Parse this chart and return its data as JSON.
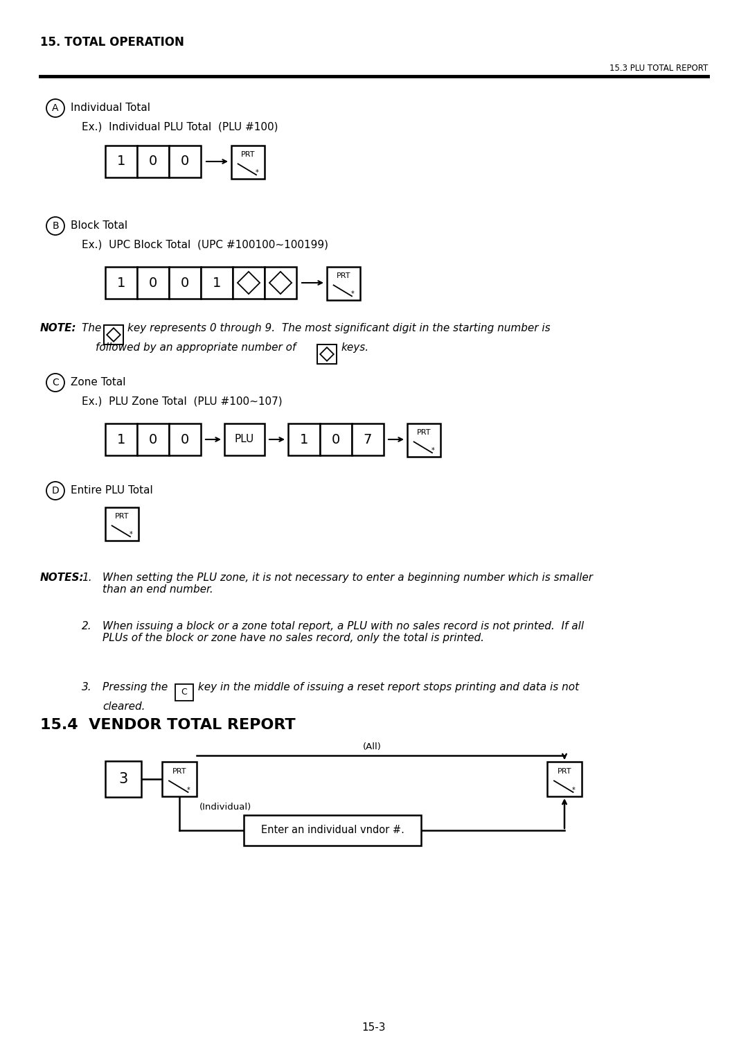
{
  "bg_color": "#ffffff",
  "header_title": "15. TOTAL OPERATION",
  "header_subtitle": "15.3 PLU TOTAL REPORT",
  "section_A_title": "Individual Total",
  "section_A_ex": "Ex.)  Individual PLU Total  (PLU #100)",
  "section_B_title": "Block Total",
  "section_B_ex": "Ex.)  UPC Block Total  (UPC #100100~100199)",
  "section_C_title": "Zone Total",
  "section_C_ex": "Ex.)  PLU Zone Total  (PLU #100~107)",
  "section_D_title": "Entire PLU Total",
  "notes_text1": "When setting the PLU zone, it is not necessary to enter a beginning number which is smaller\nthan an end number.",
  "notes_text2": "When issuing a block or a zone total report, a PLU with no sales record is not printed.  If all\nPLUs of the block or zone have no sales record, only the total is printed.",
  "notes_text3_pre": "Pressing the ",
  "notes_text3_post": " key in the middle of issuing a reset report stops printing and data is not",
  "notes_text3_end": "cleared.",
  "section_44_title": "15.4  VENDOR TOTAL REPORT",
  "vendor_label_all": "(All)",
  "vendor_label_individual": "(Individual)",
  "vendor_box_text": "Enter an individual vndor #.",
  "page_number": "15-3"
}
